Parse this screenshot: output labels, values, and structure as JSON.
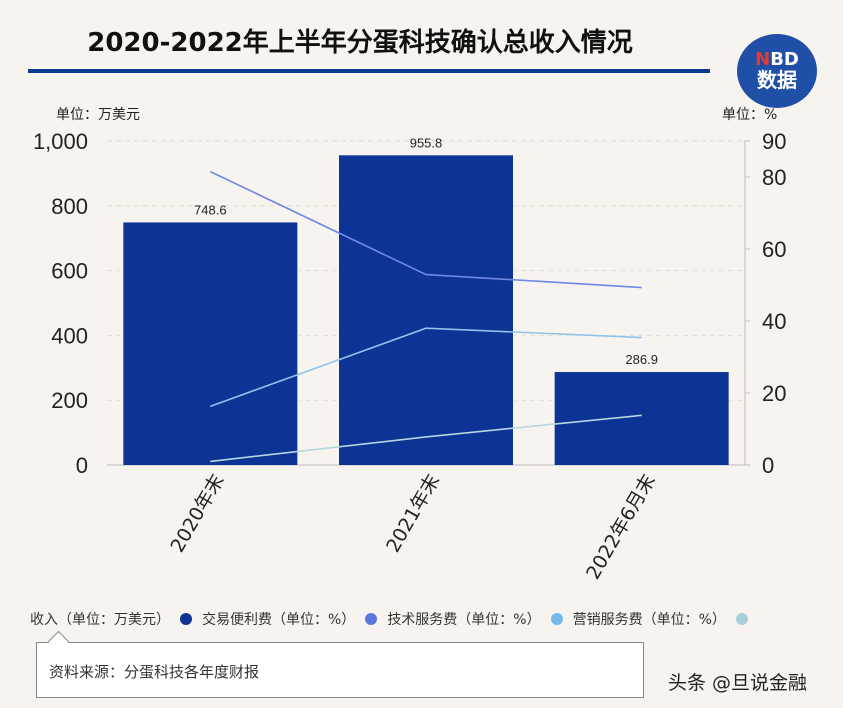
{
  "header": {
    "title": "2020-2022年上半年分蛋科技确认总收入情况",
    "logo_top_n": "N",
    "logo_top_rest": "BD",
    "logo_bottom": "数据"
  },
  "units": {
    "left": "单位：万美元",
    "right": "单位：%"
  },
  "chart_data": {
    "type": "bar",
    "categories": [
      "2020年末",
      "2021年末",
      "2022年6月末"
    ],
    "bar_series": {
      "name": "收入（单位：万美元）",
      "values": [
        748.6,
        955.8,
        286.9
      ],
      "color": "#0d3395"
    },
    "data_labels": [
      "748.6",
      "955.8",
      "286.9"
    ],
    "line_series": [
      {
        "name": "交易便利费（单位：%）",
        "values": [
          81.5,
          52.9,
          49.3
        ],
        "color": "#6d89e3"
      },
      {
        "name": "技术服务费（单位：%）",
        "values": [
          16.3,
          38.0,
          35.4
        ],
        "color": "#8fc3ec"
      },
      {
        "name": "营销服务费（单位：%）",
        "values": [
          1.0,
          7.8,
          13.8
        ],
        "color": "#b7d6e0"
      }
    ],
    "legend_swatches": [
      "#0d3395",
      "#5b77d9",
      "#74b9ea",
      "#a6cfd9"
    ],
    "ylim_left": [
      0,
      1000
    ],
    "ylim_right": [
      0,
      90
    ],
    "yticks_left": [
      "0",
      "200",
      "400",
      "600",
      "800",
      "1,000"
    ],
    "yticks_right": [
      "0",
      "20",
      "40",
      "60",
      "80",
      "90"
    ],
    "grid": true,
    "legend_position": "bottom"
  },
  "footer": {
    "source": "资料来源：分蛋科技各年度财报",
    "watermark": "头条 @旦说金融"
  }
}
